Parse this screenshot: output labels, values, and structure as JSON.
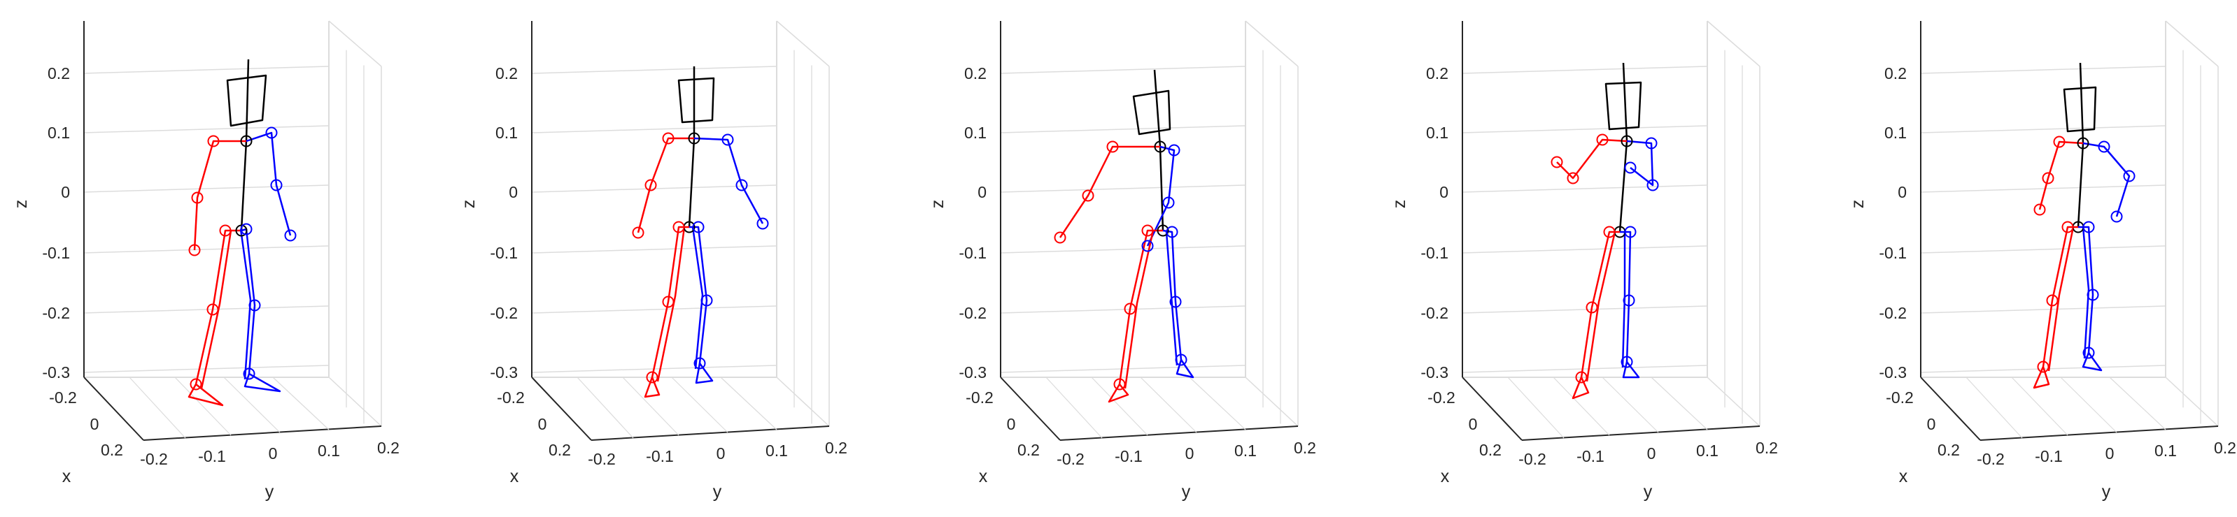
{
  "figure": {
    "panel_count": 5
  },
  "chart_data": [
    {
      "type": "scatter",
      "subtype": "3d-skeleton",
      "xlabel": "x",
      "ylabel": "y",
      "zlabel": "z",
      "z_ticks": [
        "0.2",
        "0.1",
        "0",
        "-0.1",
        "-0.2",
        "-0.3"
      ],
      "y_ticks": [
        "-0.2",
        "-0.1",
        "0",
        "0.1",
        "0.2"
      ],
      "x_ticks": [
        "-0.2",
        "0",
        "0.2"
      ],
      "grid": true,
      "series": [
        {
          "color": "#ff0000",
          "role": "left-limbs"
        },
        {
          "color": "#0000ff",
          "role": "right-limbs"
        },
        {
          "color": "#000000",
          "role": "spine-head"
        }
      ]
    },
    {
      "type": "scatter",
      "subtype": "3d-skeleton",
      "xlabel": "x",
      "ylabel": "y",
      "zlabel": "z",
      "z_ticks": [
        "0.2",
        "0.1",
        "0",
        "-0.1",
        "-0.2",
        "-0.3"
      ],
      "y_ticks": [
        "-0.2",
        "-0.1",
        "0",
        "0.1",
        "0.2"
      ],
      "x_ticks": [
        "-0.2",
        "0",
        "0.2"
      ],
      "grid": true
    },
    {
      "type": "scatter",
      "subtype": "3d-skeleton",
      "xlabel": "x",
      "ylabel": "y",
      "zlabel": "z",
      "z_ticks": [
        "0.2",
        "0.1",
        "0",
        "-0.1",
        "-0.2",
        "-0.3"
      ],
      "y_ticks": [
        "-0.2",
        "-0.1",
        "0",
        "0.1",
        "0.2"
      ],
      "x_ticks": [
        "-0.2",
        "0",
        "0.2"
      ],
      "grid": true
    },
    {
      "type": "scatter",
      "subtype": "3d-skeleton",
      "xlabel": "x",
      "ylabel": "y",
      "zlabel": "z",
      "z_ticks": [
        "0.2",
        "0.1",
        "0",
        "-0.1",
        "-0.2",
        "-0.3"
      ],
      "y_ticks": [
        "-0.2",
        "-0.1",
        "0",
        "0.1",
        "0.2"
      ],
      "x_ticks": [
        "-0.2",
        "0",
        "0.2"
      ],
      "grid": true
    },
    {
      "type": "scatter",
      "subtype": "3d-skeleton",
      "xlabel": "x",
      "ylabel": "y",
      "zlabel": "z",
      "z_ticks": [
        "0.2",
        "0.1",
        "0",
        "-0.1",
        "-0.2",
        "-0.3"
      ],
      "y_ticks": [
        "-0.2",
        "-0.1",
        "0",
        "0.1",
        "0.2"
      ],
      "x_ticks": [
        "-0.2",
        "0",
        "0.2"
      ],
      "grid": true
    }
  ]
}
